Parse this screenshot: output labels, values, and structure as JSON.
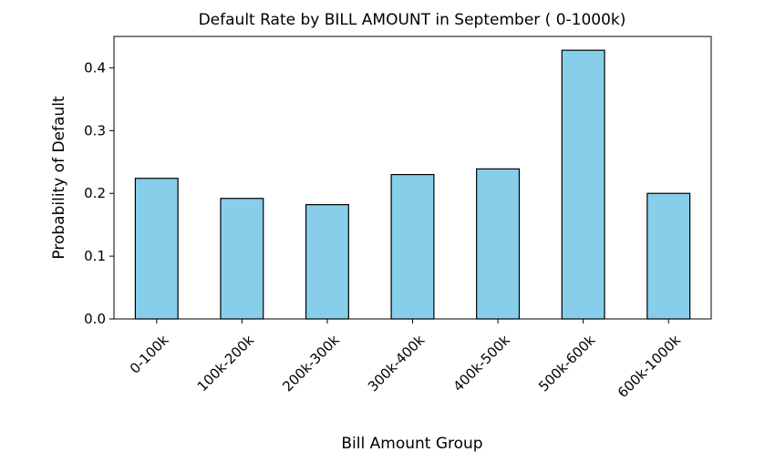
{
  "chart_data": {
    "type": "bar",
    "title": "Default Rate by BILL AMOUNT in September ( 0-1000k)",
    "xlabel": "Bill Amount Group",
    "ylabel": "Probability of Default",
    "categories": [
      "0-100k",
      "100k-200k",
      "200k-300k",
      "300k-400k",
      "400k-500k",
      "500k-600k",
      "600k-1000k"
    ],
    "values": [
      0.224,
      0.192,
      0.182,
      0.23,
      0.239,
      0.428,
      0.2
    ],
    "ylim": [
      0,
      0.45
    ],
    "yticks": [
      0.0,
      0.1,
      0.2,
      0.3,
      0.4
    ],
    "ytick_labels": [
      "0.0",
      "0.1",
      "0.2",
      "0.3",
      "0.4"
    ],
    "bar_color": "#87ceeb",
    "edge_color": "#000000",
    "grid": false,
    "legend": "none"
  }
}
